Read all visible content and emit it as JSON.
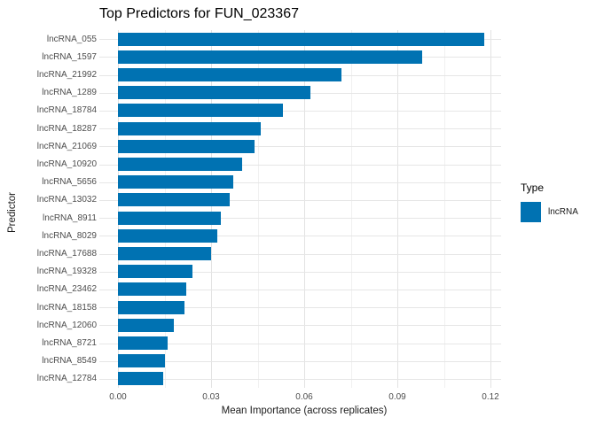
{
  "chart_data": {
    "type": "bar",
    "orientation": "horizontal",
    "title": "Top Predictors for FUN_023367",
    "xlabel": "Mean Importance (across replicates)",
    "ylabel": "Predictor",
    "categories": [
      "lncRNA_055",
      "lncRNA_1597",
      "lncRNA_21992",
      "lncRNA_1289",
      "lncRNA_18784",
      "lncRNA_18287",
      "lncRNA_21069",
      "lncRNA_10920",
      "lncRNA_5656",
      "lncRNA_13032",
      "lncRNA_8911",
      "lncRNA_8029",
      "lncRNA_17688",
      "lncRNA_19328",
      "lncRNA_23462",
      "lncRNA_18158",
      "lncRNA_12060",
      "lncRNA_8721",
      "lncRNA_8549",
      "lncRNA_12784"
    ],
    "values": [
      0.118,
      0.098,
      0.072,
      0.062,
      0.053,
      0.046,
      0.044,
      0.04,
      0.037,
      0.036,
      0.033,
      0.032,
      0.03,
      0.024,
      0.022,
      0.0215,
      0.018,
      0.016,
      0.015,
      0.0145
    ],
    "series_name": "lncRNA",
    "bar_color": "#0072B2",
    "xlim": [
      0,
      0.12
    ],
    "x_ticks": [
      0,
      0.03,
      0.06,
      0.09,
      0.12
    ],
    "x_tick_labels": [
      "0.00",
      "0.03",
      "0.06",
      "0.09",
      "0.12"
    ],
    "x_minor_step": 0.015,
    "x_major_step": 0.03,
    "grid": true,
    "legend_position": "right",
    "legend": {
      "title": "Type",
      "items": [
        {
          "label": "lncRNA",
          "color": "#0072B2"
        }
      ]
    }
  }
}
